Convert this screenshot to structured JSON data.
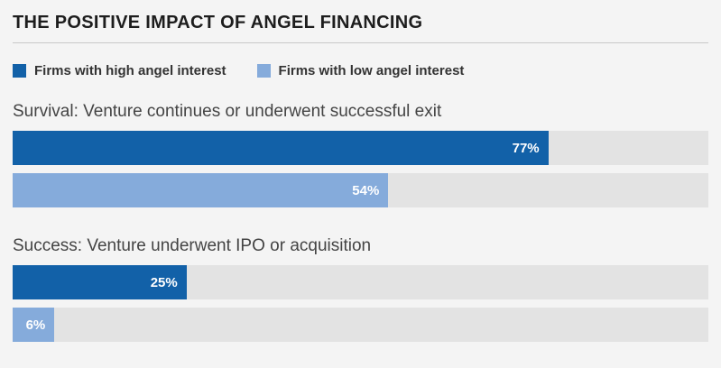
{
  "title": "THE POSITIVE IMPACT OF ANGEL FINANCING",
  "colors": {
    "high_series": "#1261a8",
    "low_series": "#85abdb",
    "track": "#e3e3e3",
    "background": "#f4f4f4"
  },
  "legend": {
    "high_label": "Firms with high angel interest",
    "low_label": "Firms with low angel interest"
  },
  "chart_data": {
    "type": "bar",
    "orientation": "horizontal",
    "title": "THE POSITIVE IMPACT OF ANGEL FINANCING",
    "xlim": [
      0,
      100
    ],
    "unit": "%",
    "legend_position": "top",
    "series_names": [
      "Firms with high angel interest",
      "Firms with low angel interest"
    ],
    "groups": [
      {
        "label": "Survival: Venture continues or underwent successful exit",
        "bars": [
          {
            "series": "Firms with high angel interest",
            "value": 77,
            "display": "77%"
          },
          {
            "series": "Firms with low angel interest",
            "value": 54,
            "display": "54%"
          }
        ]
      },
      {
        "label": "Success: Venture underwent IPO or acquisition",
        "bars": [
          {
            "series": "Firms with high angel interest",
            "value": 25,
            "display": "25%"
          },
          {
            "series": "Firms with low angel interest",
            "value": 6,
            "display": "6%"
          }
        ]
      }
    ]
  }
}
